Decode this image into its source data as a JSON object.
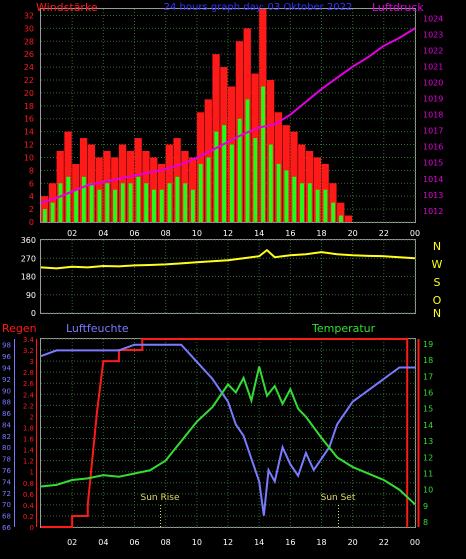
{
  "colors": {
    "background": "#000000",
    "grid": "#2e6b2e",
    "wind_red": "#ff1a1a",
    "gust_green": "#1aff1a",
    "pressure": "#e000e0",
    "direction": "#ffff1a",
    "rain": "#ff1a1a",
    "humidity": "#7a7aff",
    "temperature": "#33dd33",
    "title": "#3434ff",
    "sun": "#dddd66"
  },
  "panel1": {
    "left_label": "Windstärke",
    "title": "24 hours graph day: 03 Oktober 2022",
    "right_label": "Luftdruck"
  },
  "panel2": {
    "right_letters": [
      "N",
      "W",
      "S",
      "O",
      "N"
    ]
  },
  "panel3": {
    "label_rain": "Regen",
    "label_humidity": "Luftfeuchte",
    "label_temperature": "Temperatur",
    "sun_rise": "Sun Rise",
    "sun_set": "Sun Set"
  },
  "chart_data": [
    {
      "type": "bar",
      "name_left": "Windstärke",
      "name_right": "Luftdruck",
      "x_ticks": [
        "02",
        "04",
        "06",
        "08",
        "10",
        "12",
        "14",
        "16",
        "18",
        "20",
        "22",
        "00"
      ],
      "y_ticks_left": [
        0,
        2,
        4,
        6,
        8,
        10,
        12,
        14,
        16,
        18,
        20,
        22,
        24,
        26,
        28,
        30,
        32
      ],
      "y_ticks_right": [
        1012,
        1013,
        1014,
        1015,
        1016,
        1017,
        1018,
        1019,
        1020,
        1021,
        1022,
        1023,
        1024
      ],
      "ylim_left": [
        0,
        33
      ],
      "ylim_right": [
        1011.3,
        1024.6
      ],
      "xlim": [
        0,
        24
      ],
      "wind_red": {
        "x": [
          0,
          0.5,
          1,
          1.5,
          2,
          2.5,
          3,
          3.5,
          4,
          4.5,
          5,
          5.5,
          6,
          6.5,
          7,
          7.5,
          8,
          8.5,
          9,
          9.5,
          10,
          10.5,
          11,
          11.5,
          12,
          12.5,
          13,
          13.5,
          14,
          14.5,
          15,
          15.5,
          16,
          16.5,
          17,
          17.5,
          18,
          18.5,
          19,
          19.5,
          20,
          20.5,
          21,
          21.5,
          22,
          22.5,
          23,
          23.5
        ],
        "values": [
          4,
          6,
          11,
          14,
          9,
          13,
          12,
          10,
          11,
          10,
          12,
          11,
          13,
          11,
          10,
          9,
          12,
          13,
          11,
          10,
          17,
          19,
          26,
          24,
          21,
          28,
          30,
          23,
          33,
          22,
          17,
          15,
          14,
          12,
          11,
          10,
          9,
          6,
          3,
          1,
          0,
          0,
          0,
          0,
          0,
          0,
          0,
          0
        ]
      },
      "gust_green": {
        "x": [
          0,
          0.5,
          1,
          1.5,
          2,
          2.5,
          3,
          3.5,
          4,
          4.5,
          5,
          5.5,
          6,
          6.5,
          7,
          7.5,
          8,
          8.5,
          9,
          9.5,
          10,
          10.5,
          11,
          11.5,
          12,
          12.5,
          13,
          13.5,
          14,
          14.5,
          15,
          15.5,
          16,
          16.5,
          17,
          17.5,
          18,
          18.5,
          19,
          19.5,
          20,
          20.5,
          21,
          21.5,
          22,
          22.5,
          23,
          23.5
        ],
        "values": [
          2,
          3,
          6,
          7,
          5,
          7,
          6,
          5,
          6,
          5,
          6,
          6,
          7,
          6,
          5,
          5,
          6,
          7,
          6,
          5,
          9,
          10,
          14,
          15,
          12,
          16,
          19,
          13,
          21,
          12,
          9,
          8,
          7,
          6,
          6,
          5,
          5,
          3,
          1,
          0,
          0,
          0,
          0,
          0,
          0,
          0,
          0,
          0
        ]
      },
      "pressure": {
        "x": [
          0,
          1,
          2,
          3,
          4,
          5,
          6,
          7,
          8,
          9,
          10,
          11,
          12,
          13,
          14,
          15,
          16,
          17,
          18,
          19,
          20,
          21,
          22,
          23,
          24
        ],
        "values": [
          1012.5,
          1012.8,
          1013.2,
          1013.6,
          1013.8,
          1014.0,
          1014.2,
          1014.4,
          1014.6,
          1014.9,
          1015.3,
          1015.8,
          1016.3,
          1016.8,
          1017.2,
          1017.4,
          1018.0,
          1018.8,
          1019.6,
          1020.3,
          1021.0,
          1021.6,
          1022.3,
          1022.8,
          1023.4
        ]
      }
    },
    {
      "type": "line",
      "name": "Windrichtung",
      "y_ticks": [
        0,
        90,
        180,
        270,
        360
      ],
      "ylim": [
        0,
        360
      ],
      "xlim": [
        0,
        24
      ],
      "x": [
        0,
        1,
        2,
        3,
        4,
        5,
        6,
        7,
        8,
        9,
        10,
        11,
        12,
        13,
        14,
        14.5,
        15,
        16,
        17,
        18,
        19,
        20,
        21,
        22,
        23,
        24
      ],
      "values": [
        225,
        220,
        228,
        225,
        232,
        230,
        235,
        237,
        240,
        245,
        250,
        255,
        260,
        270,
        280,
        310,
        275,
        285,
        290,
        300,
        290,
        285,
        282,
        280,
        275,
        270
      ]
    },
    {
      "type": "line",
      "x_ticks": [
        "02",
        "04",
        "06",
        "08",
        "10",
        "12",
        "14",
        "16",
        "18",
        "20",
        "22",
        "00"
      ],
      "xlim": [
        0,
        24
      ],
      "rain": {
        "name": "Regen",
        "y_ticks": [
          0,
          0.2,
          0.4,
          0.6,
          0.8,
          1,
          1.2,
          1.4,
          1.6,
          1.8,
          2,
          2.2,
          2.4,
          2.6,
          2.8,
          3,
          3.2,
          3.4
        ],
        "ylim": [
          0,
          3.4
        ],
        "x": [
          0,
          2,
          2,
          3,
          3,
          3.6,
          4,
          4.5,
          5,
          5,
          6,
          6.5,
          6.5,
          7,
          8,
          9,
          10,
          12,
          14,
          16,
          18,
          20,
          22,
          23.5,
          23.5
        ],
        "values": [
          0,
          0,
          0.2,
          0.2,
          0.4,
          2.1,
          3.0,
          3.0,
          3.0,
          3.2,
          3.2,
          3.2,
          3.4,
          3.4,
          3.4,
          3.4,
          3.4,
          3.4,
          3.4,
          3.4,
          3.4,
          3.4,
          3.4,
          3.4,
          0
        ]
      },
      "humidity": {
        "name": "Luftfeuchte",
        "y_ticks": [
          66,
          68,
          70,
          72,
          74,
          76,
          78,
          80,
          82,
          84,
          86,
          88,
          90,
          92,
          94,
          96,
          98
        ],
        "ylim": [
          66,
          99
        ],
        "x": [
          0,
          1,
          2,
          3,
          4,
          5,
          6,
          7,
          8,
          9,
          10,
          11,
          12,
          12.5,
          13,
          13.5,
          14,
          14.3,
          14.6,
          15,
          15.5,
          16,
          16.5,
          17,
          17.5,
          18,
          18.5,
          19,
          20,
          21,
          22,
          23,
          24
        ],
        "values": [
          96,
          97,
          97,
          97,
          97,
          97,
          98,
          98,
          98,
          98,
          95,
          92,
          88,
          84,
          82,
          78,
          74,
          68,
          76,
          74,
          80,
          77,
          75,
          79,
          76,
          78,
          80,
          84,
          88,
          90,
          92,
          94,
          94
        ]
      },
      "temperature": {
        "name": "Temperatur",
        "y_ticks": [
          8,
          9,
          10,
          11,
          12,
          13,
          14,
          15,
          16,
          17,
          18,
          19
        ],
        "ylim": [
          7.7,
          19.3
        ],
        "x": [
          0,
          1,
          2,
          3,
          4,
          5,
          6,
          7,
          8,
          9,
          10,
          11,
          12,
          12.5,
          13,
          13.5,
          14,
          14.5,
          15,
          15.5,
          16,
          16.5,
          17,
          18,
          19,
          20,
          21,
          22,
          23,
          24
        ],
        "values": [
          10.2,
          10.3,
          10.6,
          10.7,
          10.9,
          10.8,
          11.0,
          11.2,
          11.8,
          13.0,
          14.2,
          15.1,
          16.5,
          16.0,
          16.9,
          15.5,
          17.6,
          15.8,
          16.4,
          15.3,
          16.2,
          15.0,
          14.5,
          13.2,
          12.0,
          11.4,
          11.0,
          10.6,
          10.0,
          9.1
        ]
      }
    }
  ]
}
